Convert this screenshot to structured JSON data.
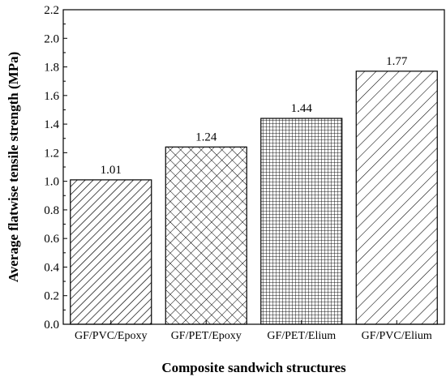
{
  "chart_data": {
    "type": "bar",
    "title": "",
    "xlabel": "Composite sandwich structures",
    "ylabel": "Average flatwise tensile strength (MPa)",
    "categories": [
      "GF/PVC/Epoxy",
      "GF/PET/Epoxy",
      "GF/PET/Elium",
      "GF/PVC/Elium"
    ],
    "values": [
      1.01,
      1.24,
      1.44,
      1.77
    ],
    "value_labels": [
      "1.01",
      "1.24",
      "1.44",
      "1.77"
    ],
    "patterns": [
      "dense-diagonal-hatch",
      "cross-hatch",
      "grid-hatch",
      "wide-diagonal-hatch"
    ],
    "ylim": [
      0,
      2.2
    ],
    "yticks": [
      "0.0",
      "0.2",
      "0.4",
      "0.6",
      "0.8",
      "1.0",
      "1.2",
      "1.4",
      "1.6",
      "1.8",
      "2.0",
      "2.2"
    ],
    "grid": false,
    "legend": "none"
  }
}
